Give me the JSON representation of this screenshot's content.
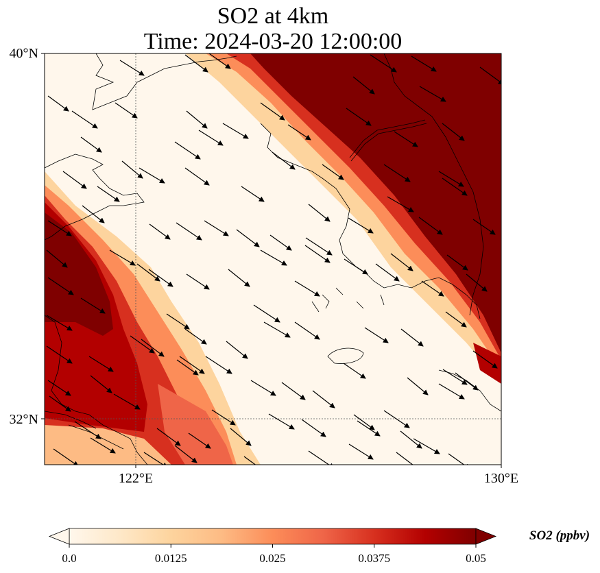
{
  "title": {
    "line1": "SO2 at 4km",
    "line2": "Time: 2024-03-20 12:00:00"
  },
  "map": {
    "lon_range": [
      120,
      130
    ],
    "lat_range": [
      31,
      40
    ],
    "gridlines": {
      "lon": [
        122
      ],
      "lat": [
        32
      ],
      "style": "dotted"
    },
    "lat_ticks": [
      {
        "value": 40,
        "label": "40°N"
      },
      {
        "value": 32,
        "label": "32°N"
      }
    ],
    "lon_ticks": [
      {
        "value": 122,
        "label": "122°E"
      },
      {
        "value": 130,
        "label": "130°E"
      }
    ],
    "field": "SO2",
    "high_zones": [
      "northeast (Korea / Manchuria)",
      "west (Shandong / Jiangsu coast)"
    ],
    "wind": {
      "dominant_direction": "northwest to southeast",
      "arrow_color": "#000000"
    }
  },
  "colorbar": {
    "label": "SO2 (ppbv)",
    "colormap": "OrRd",
    "vmin": 0.0,
    "vmax": 0.05,
    "extend": "both",
    "ticks": [
      "0.0",
      "0.0125",
      "0.025",
      "0.0375",
      "0.05"
    ],
    "colors": [
      "#fff7ec",
      "#fee8c8",
      "#fdd49e",
      "#fdbb84",
      "#fc8d59",
      "#ef6548",
      "#d7301f",
      "#b30000",
      "#7f0000"
    ]
  }
}
